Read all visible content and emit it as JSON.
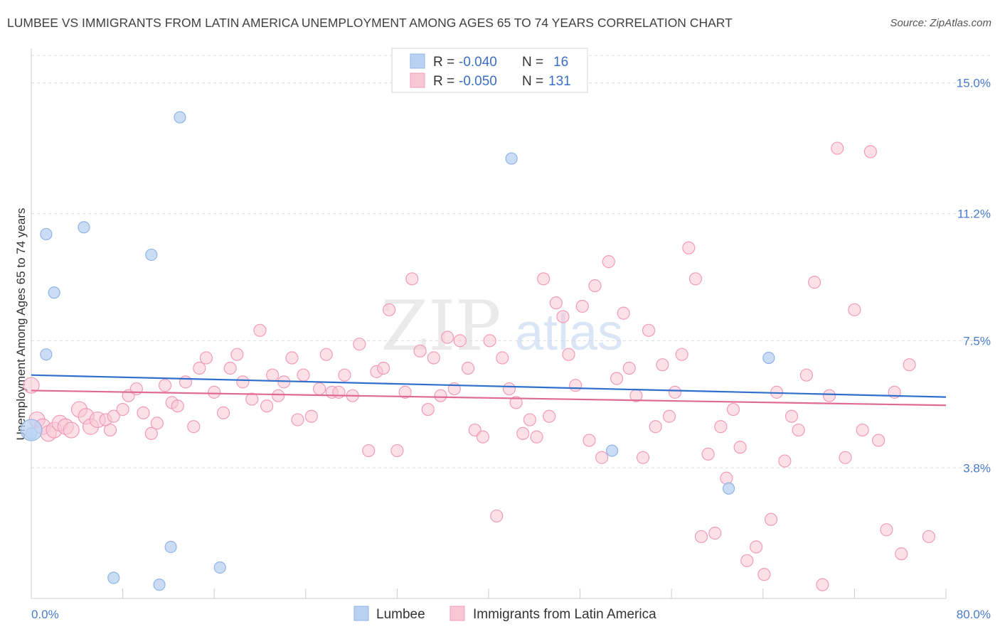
{
  "title": "LUMBEE VS IMMIGRANTS FROM LATIN AMERICA UNEMPLOYMENT AMONG AGES 65 TO 74 YEARS CORRELATION CHART",
  "source": "Source: ZipAtlas.com",
  "watermark": "ZIPatlas",
  "chart_data": {
    "type": "scatter",
    "ylabel": "Unemployment Among Ages 65 to 74 years",
    "xlabel": "",
    "xlim": [
      0,
      80
    ],
    "ylim": [
      0,
      15.8
    ],
    "y_ticks": [
      3.8,
      7.5,
      11.2,
      15.0
    ],
    "y_tick_labels": [
      "3.8%",
      "7.5%",
      "11.2%",
      "15.0%"
    ],
    "x_tick_labels": [
      "0.0%",
      "80.0%"
    ],
    "legend": [
      {
        "r_label": "R =",
        "r_value": "-0.040",
        "n_label": "N =",
        "n_value": "16"
      },
      {
        "r_label": "R =",
        "r_value": "-0.050",
        "n_label": "N =",
        "n_value": "131"
      }
    ],
    "series": [
      {
        "name": "Lumbee",
        "color": "#8fb4e6",
        "fill": "#b9d1f2",
        "line_color": "#2f6fcc",
        "trend": [
          [
            0,
            6.5
          ],
          [
            80,
            5.86
          ]
        ],
        "points": [
          [
            0,
            4.8
          ],
          [
            1.3,
            10.6
          ],
          [
            2.0,
            8.9
          ],
          [
            1.3,
            7.1
          ],
          [
            4.6,
            10.8
          ],
          [
            7.2,
            0.6
          ],
          [
            10.5,
            10.0
          ],
          [
            13.0,
            14.0
          ],
          [
            11.2,
            0.4
          ],
          [
            12.2,
            1.5
          ],
          [
            16.5,
            0.9
          ],
          [
            42.0,
            12.8
          ],
          [
            50.8,
            4.3
          ],
          [
            61.0,
            3.2
          ],
          [
            64.5,
            7.0
          ],
          [
            0,
            4.9
          ]
        ]
      },
      {
        "name": "Immigrants from Latin America",
        "color": "#f29bb8",
        "fill": "#f8c7d6",
        "line_color": "#e06a96",
        "trend": [
          [
            0,
            6.05
          ],
          [
            80,
            5.62
          ]
        ],
        "points": [
          [
            0,
            6.2
          ],
          [
            0.5,
            5.2
          ],
          [
            1.0,
            5.0
          ],
          [
            1.5,
            4.8
          ],
          [
            2.0,
            4.9
          ],
          [
            2.5,
            5.1
          ],
          [
            3.0,
            5.0
          ],
          [
            3.5,
            4.9
          ],
          [
            4.2,
            5.5
          ],
          [
            4.8,
            5.3
          ],
          [
            5.2,
            5.0
          ],
          [
            5.8,
            5.2
          ],
          [
            6.5,
            5.2
          ],
          [
            6.9,
            4.9
          ],
          [
            7.2,
            5.3
          ],
          [
            8.0,
            5.5
          ],
          [
            8.5,
            5.9
          ],
          [
            9.2,
            6.1
          ],
          [
            9.8,
            5.4
          ],
          [
            10.5,
            4.8
          ],
          [
            11.0,
            5.1
          ],
          [
            11.7,
            6.2
          ],
          [
            12.3,
            5.7
          ],
          [
            12.8,
            5.6
          ],
          [
            13.5,
            6.3
          ],
          [
            14.2,
            5.0
          ],
          [
            14.7,
            6.7
          ],
          [
            15.3,
            7.0
          ],
          [
            16.0,
            6.0
          ],
          [
            16.8,
            5.4
          ],
          [
            17.4,
            6.7
          ],
          [
            18.0,
            7.1
          ],
          [
            18.5,
            6.3
          ],
          [
            19.3,
            5.8
          ],
          [
            20.0,
            7.8
          ],
          [
            20.6,
            5.6
          ],
          [
            21.1,
            6.5
          ],
          [
            21.6,
            5.9
          ],
          [
            22.1,
            6.3
          ],
          [
            22.8,
            7.0
          ],
          [
            23.3,
            5.2
          ],
          [
            23.8,
            6.5
          ],
          [
            24.5,
            5.3
          ],
          [
            25.2,
            6.1
          ],
          [
            25.8,
            7.1
          ],
          [
            26.3,
            6.0
          ],
          [
            26.9,
            6.0
          ],
          [
            27.4,
            6.5
          ],
          [
            28.1,
            5.9
          ],
          [
            28.7,
            7.4
          ],
          [
            29.5,
            4.3
          ],
          [
            30.2,
            6.6
          ],
          [
            30.8,
            6.7
          ],
          [
            31.3,
            8.4
          ],
          [
            32.0,
            4.3
          ],
          [
            32.7,
            6.0
          ],
          [
            33.3,
            9.3
          ],
          [
            34.0,
            7.2
          ],
          [
            34.7,
            5.5
          ],
          [
            35.2,
            7.0
          ],
          [
            35.8,
            5.9
          ],
          [
            36.4,
            7.6
          ],
          [
            37.0,
            6.1
          ],
          [
            37.5,
            7.5
          ],
          [
            38.2,
            6.7
          ],
          [
            38.8,
            4.9
          ],
          [
            39.5,
            4.7
          ],
          [
            40.1,
            7.5
          ],
          [
            40.7,
            2.4
          ],
          [
            41.2,
            7.0
          ],
          [
            41.8,
            6.1
          ],
          [
            42.4,
            5.7
          ],
          [
            43.0,
            4.8
          ],
          [
            43.6,
            5.2
          ],
          [
            44.2,
            4.7
          ],
          [
            44.8,
            9.3
          ],
          [
            45.3,
            5.3
          ],
          [
            45.9,
            8.6
          ],
          [
            46.5,
            8.2
          ],
          [
            47.0,
            7.1
          ],
          [
            47.6,
            6.2
          ],
          [
            48.2,
            8.5
          ],
          [
            48.8,
            4.6
          ],
          [
            49.3,
            9.1
          ],
          [
            49.9,
            4.1
          ],
          [
            50.5,
            9.8
          ],
          [
            51.2,
            6.4
          ],
          [
            51.8,
            8.3
          ],
          [
            52.3,
            6.7
          ],
          [
            52.9,
            5.9
          ],
          [
            53.5,
            4.1
          ],
          [
            54.0,
            7.8
          ],
          [
            54.6,
            5.0
          ],
          [
            55.2,
            6.8
          ],
          [
            55.8,
            5.3
          ],
          [
            56.3,
            6.0
          ],
          [
            56.9,
            7.1
          ],
          [
            57.5,
            10.2
          ],
          [
            58.1,
            9.3
          ],
          [
            58.6,
            1.8
          ],
          [
            59.2,
            4.2
          ],
          [
            59.8,
            1.9
          ],
          [
            60.3,
            5.0
          ],
          [
            60.8,
            3.5
          ],
          [
            61.4,
            5.5
          ],
          [
            62.0,
            4.4
          ],
          [
            62.6,
            1.1
          ],
          [
            63.4,
            1.5
          ],
          [
            64.1,
            0.7
          ],
          [
            64.7,
            2.3
          ],
          [
            65.2,
            6.0
          ],
          [
            65.9,
            4.0
          ],
          [
            66.5,
            5.3
          ],
          [
            67.1,
            4.9
          ],
          [
            67.8,
            6.5
          ],
          [
            68.5,
            9.2
          ],
          [
            69.2,
            0.4
          ],
          [
            69.8,
            5.9
          ],
          [
            70.5,
            13.1
          ],
          [
            71.2,
            4.1
          ],
          [
            72.0,
            8.4
          ],
          [
            72.7,
            4.9
          ],
          [
            73.4,
            13.0
          ],
          [
            74.1,
            4.6
          ],
          [
            74.8,
            2.0
          ],
          [
            75.5,
            6.0
          ],
          [
            76.1,
            1.3
          ],
          [
            76.8,
            6.8
          ],
          [
            78.5,
            1.8
          ]
        ]
      }
    ]
  },
  "bottom_legend": [
    "Lumbee",
    "Immigrants from Latin America"
  ]
}
